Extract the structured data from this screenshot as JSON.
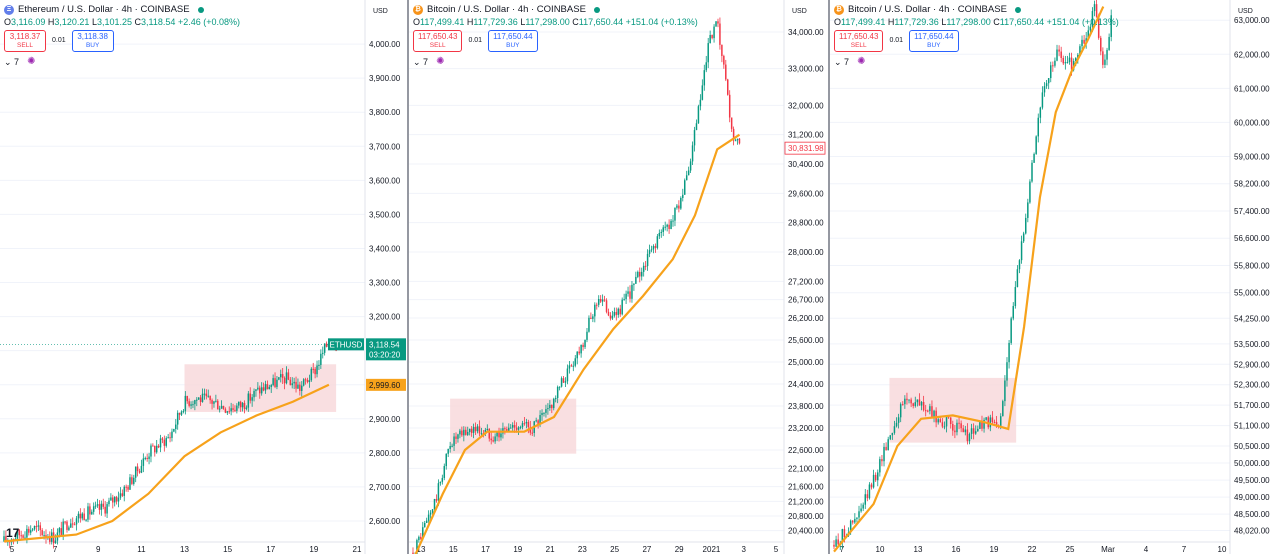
{
  "panels": [
    {
      "symbol_title": "Ethereum / U.S. Dollar · 4h · COINBASE",
      "coin_glyph": "Ξ",
      "coin_color": "#627eea",
      "ohlc": {
        "o": "3,116.09",
        "h": "3,120.21",
        "l": "3,101.25",
        "c": "3,118.54",
        "chg": "+2.46 (+0.08%)"
      },
      "sell": {
        "price": "3,118.37",
        "label": "SELL"
      },
      "buy": {
        "price": "3,118.38",
        "label": "BUY"
      },
      "spread": "0.01",
      "interval_count": "7",
      "currency": "USD",
      "ticker_tag": "ETHUSD",
      "last_price_tag": "3,118.54",
      "countdown": "03:20:20",
      "ma_tag": "2,999.60",
      "x_tick_labels": [
        "5",
        "7",
        "9",
        "11",
        "13",
        "15",
        "17",
        "19",
        "21"
      ]
    },
    {
      "symbol_title": "Bitcoin / U.S. Dollar · 4h · COINBASE",
      "coin_glyph": "₿",
      "coin_color": "#f7931a",
      "ohlc": {
        "o": "117,499.41",
        "h": "117,729.36",
        "l": "117,298.00",
        "c": "117,650.44",
        "chg": "+151.04 (+0.13%)"
      },
      "sell": {
        "price": "117,650.43",
        "label": "SELL"
      },
      "buy": {
        "price": "117,650.44",
        "label": "BUY"
      },
      "spread": "0.01",
      "interval_count": "7",
      "currency": "USD",
      "last_price_tag": "30,831.98",
      "x_tick_labels": [
        "13",
        "15",
        "17",
        "19",
        "21",
        "23",
        "25",
        "27",
        "29",
        "2021",
        "3",
        "5"
      ]
    },
    {
      "symbol_title": "Bitcoin / U.S. Dollar · 4h · COINBASE",
      "coin_glyph": "₿",
      "coin_color": "#f7931a",
      "ohlc": {
        "o": "117,499.41",
        "h": "117,729.36",
        "l": "117,298.00",
        "c": "117,650.44",
        "chg": "+151.04 (+0.13%)"
      },
      "sell": {
        "price": "117,650.43",
        "label": "SELL"
      },
      "buy": {
        "price": "117,650.44",
        "label": "BUY"
      },
      "spread": "0.01",
      "interval_count": "7",
      "currency": "USD",
      "x_tick_labels": [
        "7",
        "10",
        "13",
        "16",
        "19",
        "22",
        "25",
        "Mar",
        "4",
        "7",
        "10"
      ]
    }
  ],
  "colors": {
    "up": "#089981",
    "down": "#f23645",
    "ma": "#f7a21b",
    "zone": "#f8d7da",
    "grid": "#f0f3fa"
  },
  "chart_data": [
    {
      "type": "candlestick",
      "ylim": [
        2550,
        4100
      ],
      "y_ticks": [
        "2,600.00",
        "2,700.00",
        "2,800.00",
        "2,900.00",
        "3,000.00",
        "3,100.00",
        "3,200.00",
        "3,300.00",
        "3,400.00",
        "3,500.00",
        "3,600.00",
        "3,700.00",
        "3,800.00",
        "3,900.00",
        "4,000.00"
      ],
      "close_path": [
        [
          0,
          2540
        ],
        [
          8,
          2580
        ],
        [
          14,
          2550
        ],
        [
          18,
          2600
        ],
        [
          22,
          2620
        ],
        [
          28,
          2640
        ],
        [
          34,
          2700
        ],
        [
          40,
          2800
        ],
        [
          46,
          2850
        ],
        [
          50,
          2950
        ],
        [
          54,
          2960
        ],
        [
          58,
          2950
        ],
        [
          62,
          2930
        ],
        [
          66,
          2940
        ],
        [
          70,
          2980
        ],
        [
          74,
          3000
        ],
        [
          78,
          3020
        ],
        [
          82,
          2990
        ],
        [
          86,
          3040
        ],
        [
          90,
          3130
        ],
        [
          92,
          3118
        ]
      ],
      "ma_path": [
        [
          0,
          2540
        ],
        [
          20,
          2560
        ],
        [
          30,
          2600
        ],
        [
          40,
          2680
        ],
        [
          50,
          2790
        ],
        [
          60,
          2860
        ],
        [
          70,
          2910
        ],
        [
          80,
          2950
        ],
        [
          90,
          3000
        ]
      ],
      "zone": {
        "x_from": 50,
        "x_to": 92,
        "y_from": 2920,
        "y_to": 3060
      },
      "last_price": 3118.54,
      "ma_last": 2999.6
    },
    {
      "type": "candlestick",
      "ylim": [
        20200,
        34600
      ],
      "y_ticks": [
        "20,400.00",
        "20,800.00",
        "21,200.00",
        "21,600.00",
        "22,100.00",
        "22,600.00",
        "23,200.00",
        "23,800.00",
        "24,400.00",
        "25,000.00",
        "25,600.00",
        "26,200.00",
        "26,700.00",
        "27,200.00",
        "28,000.00",
        "28,800.00",
        "29,600.00",
        "30,400.00",
        "31,200.00",
        "32,000.00",
        "33,000.00",
        "34,000.00"
      ],
      "close_path": [
        [
          0,
          19800
        ],
        [
          6,
          21200
        ],
        [
          10,
          22800
        ],
        [
          16,
          23200
        ],
        [
          22,
          23000
        ],
        [
          28,
          23300
        ],
        [
          32,
          23200
        ],
        [
          36,
          23600
        ],
        [
          40,
          24400
        ],
        [
          46,
          25600
        ],
        [
          50,
          26800
        ],
        [
          54,
          26200
        ],
        [
          58,
          26800
        ],
        [
          62,
          27600
        ],
        [
          66,
          28400
        ],
        [
          70,
          28900
        ],
        [
          74,
          30000
        ],
        [
          78,
          32500
        ],
        [
          80,
          33800
        ],
        [
          82,
          34200
        ],
        [
          84,
          32800
        ],
        [
          86,
          31200
        ],
        [
          88,
          30832
        ]
      ],
      "ma_path": [
        [
          0,
          19600
        ],
        [
          8,
          21400
        ],
        [
          14,
          22600
        ],
        [
          20,
          23100
        ],
        [
          30,
          23100
        ],
        [
          38,
          23500
        ],
        [
          46,
          24800
        ],
        [
          54,
          25900
        ],
        [
          62,
          26800
        ],
        [
          70,
          27800
        ],
        [
          76,
          29000
        ],
        [
          82,
          30800
        ],
        [
          88,
          31200
        ]
      ],
      "zone": {
        "x_from": 10,
        "x_to": 44,
        "y_from": 22500,
        "y_to": 24000
      },
      "last_price": 30831.98
    },
    {
      "type": "candlestick",
      "ylim": [
        47800,
        63300
      ],
      "y_ticks": [
        "48,020.00",
        "48,500.00",
        "49,000.00",
        "49,500.00",
        "50,000.00",
        "50,500.00",
        "51,100.00",
        "51,700.00",
        "52,300.00",
        "52,900.00",
        "53,500.00",
        "54,250.00",
        "55,000.00",
        "55,800.00",
        "56,600.00",
        "57,400.00",
        "58,200.00",
        "59,000.00",
        "60,000.00",
        "61,000.00",
        "62,000.00",
        "63,000.00"
      ],
      "close_path": [
        [
          0,
          47600
        ],
        [
          6,
          48400
        ],
        [
          10,
          49500
        ],
        [
          14,
          50800
        ],
        [
          18,
          51900
        ],
        [
          22,
          51700
        ],
        [
          26,
          51300
        ],
        [
          30,
          51100
        ],
        [
          34,
          50800
        ],
        [
          38,
          51200
        ],
        [
          42,
          51100
        ],
        [
          44,
          53500
        ],
        [
          48,
          57000
        ],
        [
          52,
          60500
        ],
        [
          56,
          62000
        ],
        [
          60,
          61700
        ],
        [
          64,
          62600
        ],
        [
          66,
          63500
        ],
        [
          68,
          61400
        ],
        [
          70,
          63000
        ]
      ],
      "ma_path": [
        [
          0,
          47400
        ],
        [
          10,
          48800
        ],
        [
          16,
          50500
        ],
        [
          22,
          51300
        ],
        [
          30,
          51400
        ],
        [
          38,
          51200
        ],
        [
          44,
          51000
        ],
        [
          48,
          54000
        ],
        [
          52,
          57800
        ],
        [
          56,
          60300
        ],
        [
          60,
          61500
        ],
        [
          64,
          62400
        ],
        [
          68,
          63400
        ]
      ],
      "zone": {
        "x_from": 14,
        "x_to": 46,
        "y_from": 50600,
        "y_to": 52500
      }
    }
  ]
}
